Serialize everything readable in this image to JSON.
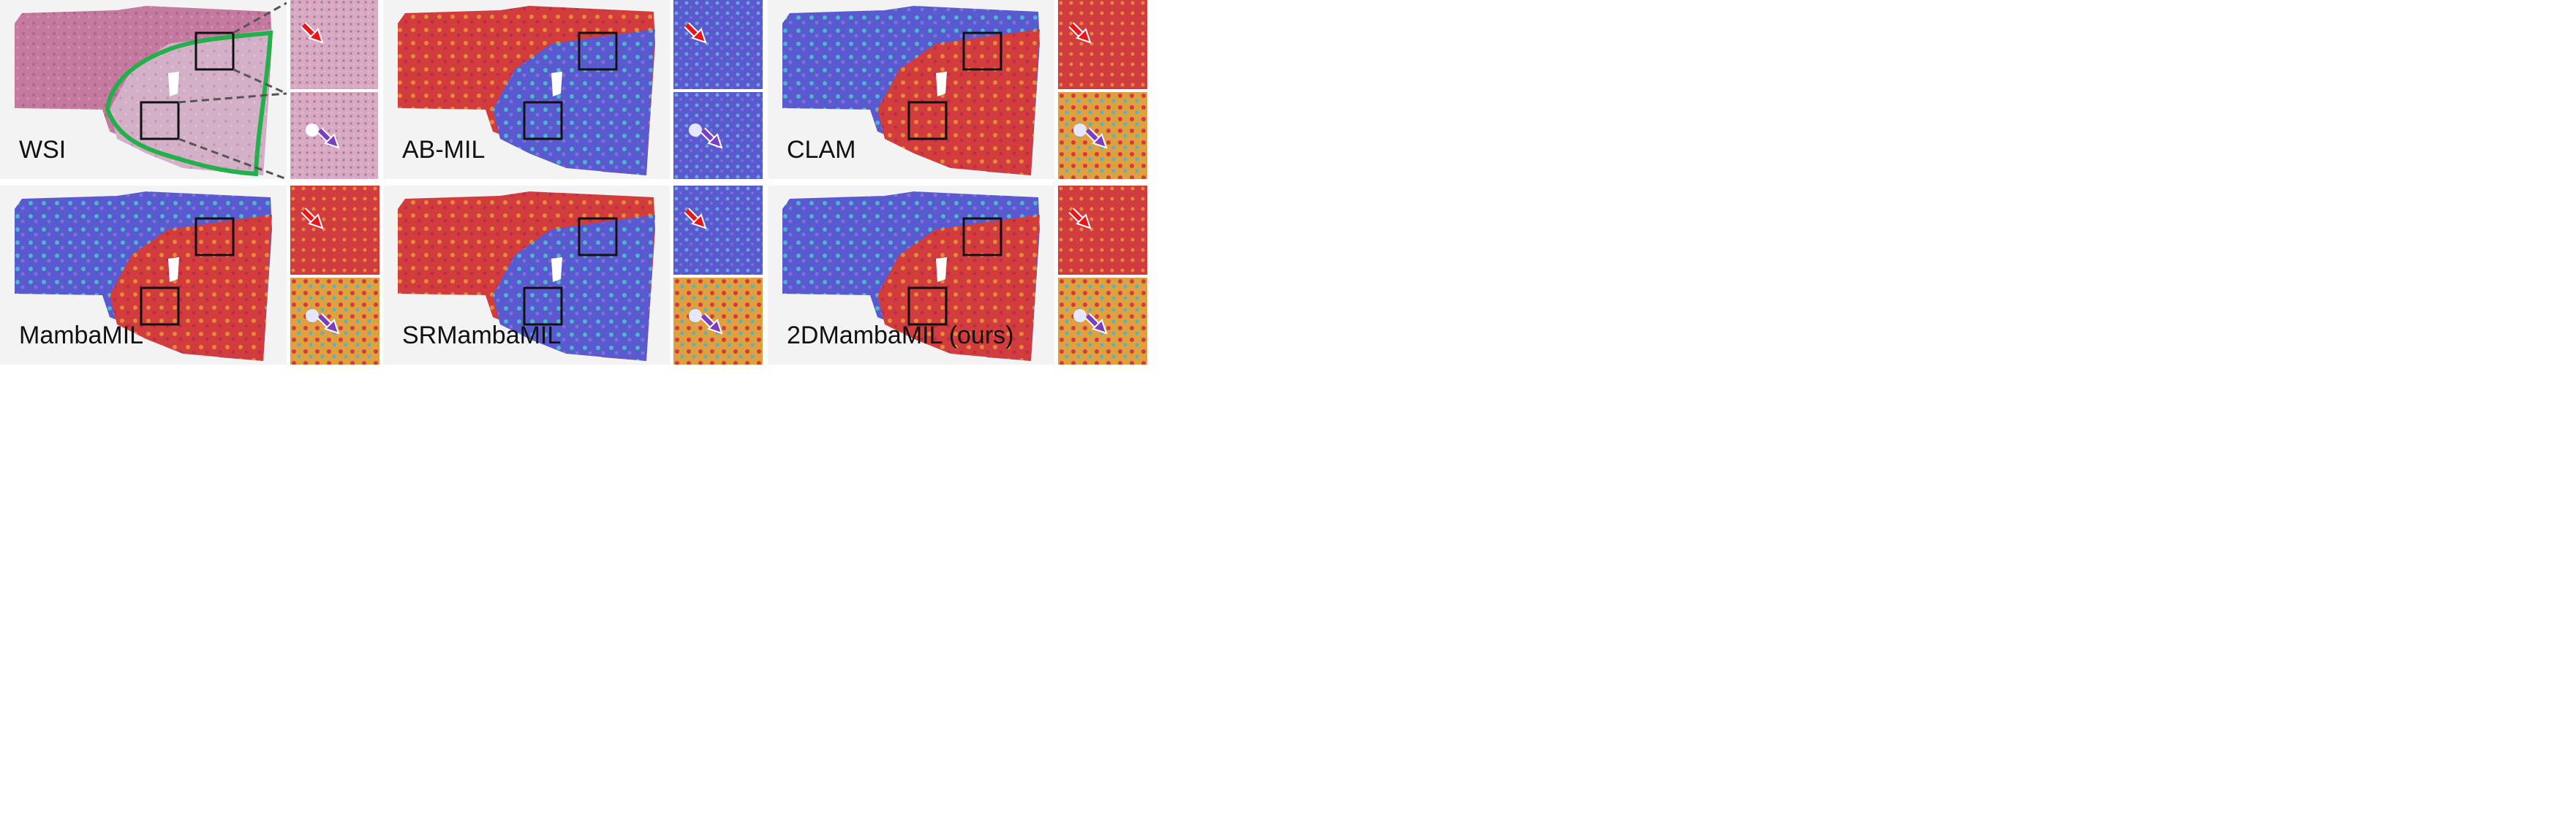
{
  "panels": [
    {
      "label": "WSI",
      "style": "he"
    },
    {
      "label": "AB-MIL",
      "style": "abmil"
    },
    {
      "label": "CLAM",
      "style": "inv"
    },
    {
      "label": "MambaMIL",
      "style": "inv"
    },
    {
      "label": "SRMambaMIL",
      "style": "abmil"
    },
    {
      "label": "2DMambaMIL (ours)",
      "style": "inv"
    }
  ],
  "colors": {
    "roi_outline": "#22b04a",
    "crop_box": "#111111",
    "arrow_red": "#e8161b",
    "arrow_purple": "#7a3ec0",
    "he_pink": "#c9789e",
    "he_light": "#d8b3cc",
    "heat_red": "#d23c3c",
    "heat_blue": "#5a5ad0",
    "heat_mid": "#e0a040"
  },
  "icons": {
    "red_arrow": "down-right-arrow-icon",
    "purple_arrow": "down-right-arrow-icon"
  }
}
